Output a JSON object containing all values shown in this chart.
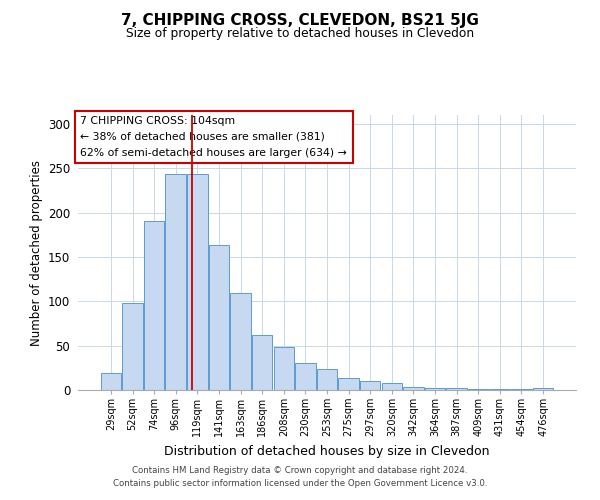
{
  "title": "7, CHIPPING CROSS, CLEVEDON, BS21 5JG",
  "subtitle": "Size of property relative to detached houses in Clevedon",
  "xlabel": "Distribution of detached houses by size in Clevedon",
  "ylabel": "Number of detached properties",
  "bar_color": "#c6d9f0",
  "bar_edge_color": "#5b9bd5",
  "categories": [
    "29sqm",
    "52sqm",
    "74sqm",
    "96sqm",
    "119sqm",
    "141sqm",
    "163sqm",
    "186sqm",
    "208sqm",
    "230sqm",
    "253sqm",
    "275sqm",
    "297sqm",
    "320sqm",
    "342sqm",
    "364sqm",
    "387sqm",
    "409sqm",
    "431sqm",
    "454sqm",
    "476sqm"
  ],
  "values": [
    19,
    98,
    190,
    243,
    243,
    163,
    109,
    62,
    48,
    30,
    24,
    13,
    10,
    8,
    3,
    2,
    2,
    1,
    1,
    1,
    2
  ],
  "ylim": [
    0,
    310
  ],
  "yticks": [
    0,
    50,
    100,
    150,
    200,
    250,
    300
  ],
  "property_line_x": 3.77,
  "property_line_color": "#cc0000",
  "annotation_title": "7 CHIPPING CROSS: 104sqm",
  "annotation_line1": "← 38% of detached houses are smaller (381)",
  "annotation_line2": "62% of semi-detached houses are larger (634) →",
  "annotation_box_color": "#cc0000",
  "footer_line1": "Contains HM Land Registry data © Crown copyright and database right 2024.",
  "footer_line2": "Contains public sector information licensed under the Open Government Licence v3.0.",
  "background_color": "#ffffff",
  "grid_color": "#c8d8e8"
}
